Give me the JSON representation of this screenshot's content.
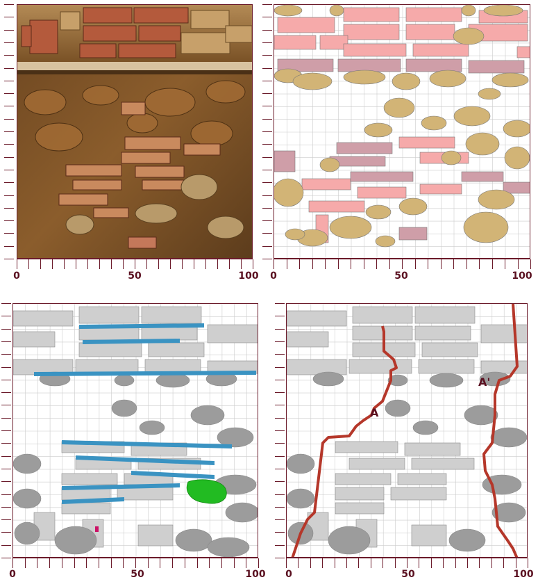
{
  "panels": [
    {
      "id": "photo",
      "type": "photograph",
      "axis_ticks": [
        "0",
        "50",
        "100"
      ]
    },
    {
      "id": "material-map",
      "type": "drawing",
      "axis_ticks": [
        "0",
        "50",
        "100"
      ]
    },
    {
      "id": "mortar-joints",
      "type": "drawing",
      "axis_ticks": [
        "0",
        "50",
        "100"
      ]
    },
    {
      "id": "section-lines",
      "type": "drawing",
      "axis_ticks": [
        "0",
        "50",
        "100"
      ],
      "labels": [
        "A",
        "A'"
      ]
    }
  ],
  "colors": {
    "frame": "#6b1a2a",
    "brick_pink": "#f6aaaa",
    "brick_mauve": "#cf9ea8",
    "stone_ochre": "#d2b476",
    "stone_grey": "#bdbdbd",
    "stone_dark": "#9c9c9c",
    "joint_blue": "#3a93c2",
    "patch_green": "#22bb22",
    "section_red": "#b5372a",
    "marker_magenta": "#cc1166"
  }
}
